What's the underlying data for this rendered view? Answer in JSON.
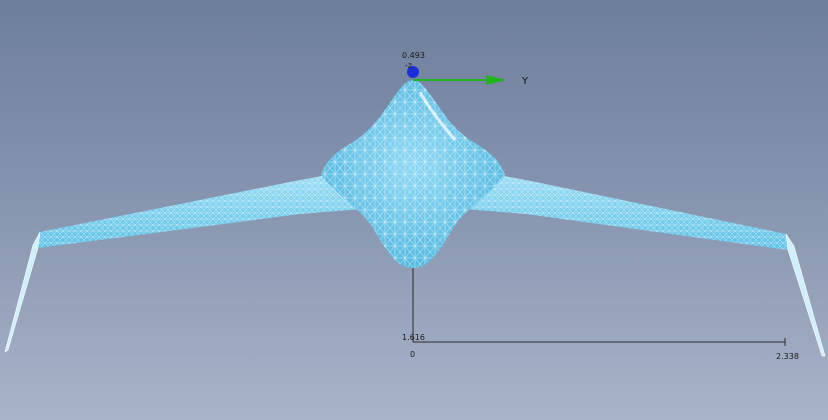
{
  "viewport": {
    "background_top": "#6d7e9c",
    "background_bottom": "#a9b4c9"
  },
  "model": {
    "mesh_color": "#7fd0ee",
    "mesh_line_color": "#e8f8ff"
  },
  "triad": {
    "origin_value": "0.493",
    "z_label": "-z",
    "y_axis_label": "Y",
    "y_axis_color": "#1fb31f",
    "origin_color": "#1a2fd6"
  },
  "scale_bar": {
    "vertical_value": "1.616",
    "origin_label": "0",
    "end_value": "2.338"
  }
}
